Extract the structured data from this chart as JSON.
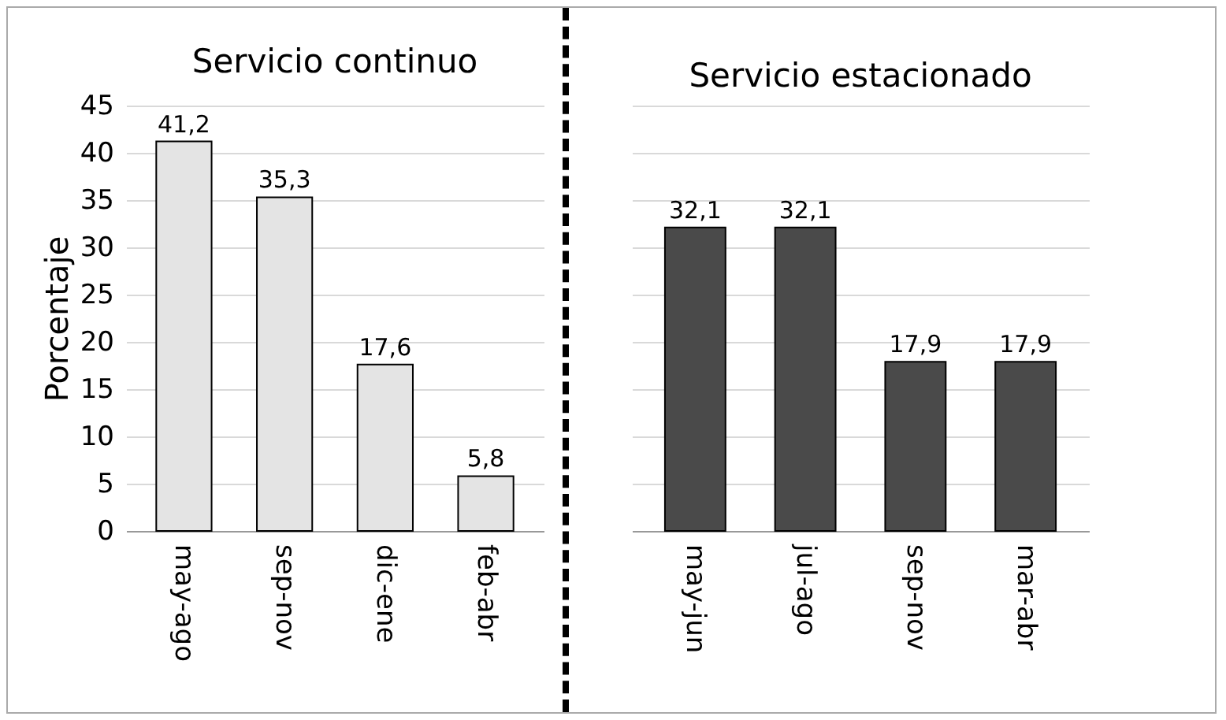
{
  "chart_data": [
    {
      "type": "bar",
      "title": "Servicio continuo",
      "ylabel": "Porcentaje",
      "categories": [
        "may-ago",
        "sep-nov",
        "dic-ene",
        "feb-abr"
      ],
      "values": [
        41.2,
        35.3,
        17.6,
        5.8
      ],
      "value_labels": [
        "41,2",
        "35,3",
        "17,6",
        "5,8"
      ],
      "color": "#e4e4e4",
      "ylim": [
        0,
        45
      ],
      "yticks": [
        0,
        5,
        10,
        15,
        20,
        25,
        30,
        35,
        40,
        45
      ],
      "grid": "y"
    },
    {
      "type": "bar",
      "title": "Servicio estacionado",
      "categories": [
        "may-jun",
        "jul-ago",
        "sep-nov",
        "mar-abr"
      ],
      "values": [
        32.1,
        32.1,
        17.9,
        17.9
      ],
      "value_labels": [
        "32,1",
        "32,1",
        "17,9",
        "17,9"
      ],
      "color": "#4a4a4a",
      "ylim": [
        0,
        45
      ],
      "yticks": [
        0,
        5,
        10,
        15,
        20,
        25,
        30,
        35,
        40,
        45
      ],
      "grid": "y",
      "tick_labels": "x"
    }
  ]
}
